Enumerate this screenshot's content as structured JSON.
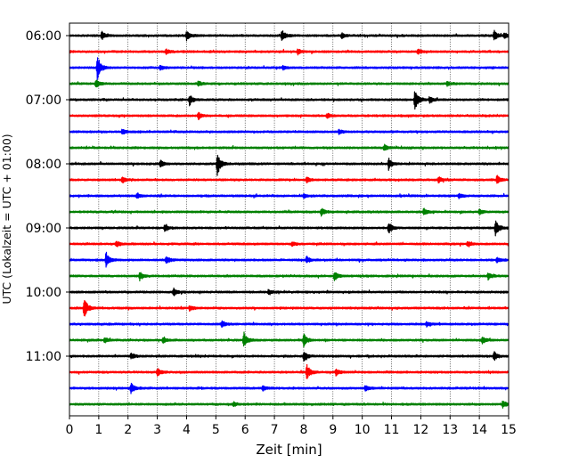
{
  "chart_data": {
    "type": "line",
    "title": "",
    "xlabel": "Zeit  [min]",
    "ylabel": "UTC (Lokalzeit = UTC + 01:00)",
    "xlim": [
      0,
      15
    ],
    "x_ticks": [
      "0",
      "1",
      "2",
      "3",
      "4",
      "5",
      "6",
      "7",
      "8",
      "9",
      "10",
      "11",
      "12",
      "13",
      "14",
      "15"
    ],
    "y_ticks": [
      "06:00",
      "07:00",
      "08:00",
      "09:00",
      "10:00",
      "11:00"
    ],
    "grid": "vertical dotted at each minute",
    "legend": "none",
    "color_cycle": [
      "#000000",
      "#ff0000",
      "#0000ff",
      "#008000"
    ],
    "traces": [
      {
        "start": "06:00",
        "color": "#000000",
        "events": [
          [
            1.1,
            1.0
          ],
          [
            4.0,
            1.1
          ],
          [
            7.25,
            1.4
          ],
          [
            9.3,
            0.7
          ],
          [
            14.5,
            1.2
          ],
          [
            14.85,
            0.8
          ]
        ]
      },
      {
        "start": "06:15",
        "color": "#ff0000",
        "events": [
          [
            3.3,
            0.6
          ],
          [
            7.8,
            0.6
          ],
          [
            11.9,
            0.6
          ]
        ]
      },
      {
        "start": "06:30",
        "color": "#0000ff",
        "events": [
          [
            0.95,
            3.2
          ],
          [
            3.1,
            0.6
          ],
          [
            7.3,
            0.5
          ]
        ]
      },
      {
        "start": "06:45",
        "color": "#008000",
        "events": [
          [
            0.9,
            1.0
          ],
          [
            4.4,
            0.6
          ],
          [
            12.9,
            0.5
          ]
        ]
      },
      {
        "start": "07:00",
        "color": "#000000",
        "events": [
          [
            4.1,
            1.3
          ],
          [
            11.8,
            2.6
          ],
          [
            12.3,
            0.7
          ]
        ]
      },
      {
        "start": "07:15",
        "color": "#ff0000",
        "events": [
          [
            4.4,
            0.9
          ],
          [
            8.8,
            0.6
          ]
        ]
      },
      {
        "start": "07:30",
        "color": "#0000ff",
        "events": [
          [
            1.8,
            0.6
          ],
          [
            9.2,
            0.5
          ]
        ]
      },
      {
        "start": "07:45",
        "color": "#008000",
        "events": [
          [
            10.75,
            0.8
          ]
        ]
      },
      {
        "start": "08:00",
        "color": "#000000",
        "events": [
          [
            3.1,
            0.9
          ],
          [
            5.05,
            2.8
          ],
          [
            10.9,
            1.4
          ]
        ]
      },
      {
        "start": "08:15",
        "color": "#ff0000",
        "events": [
          [
            1.8,
            0.7
          ],
          [
            8.1,
            0.6
          ],
          [
            12.6,
            0.7
          ],
          [
            14.6,
            1.0
          ]
        ]
      },
      {
        "start": "08:30",
        "color": "#0000ff",
        "events": [
          [
            2.3,
            0.6
          ],
          [
            8.0,
            0.5
          ],
          [
            13.3,
            0.6
          ]
        ]
      },
      {
        "start": "08:45",
        "color": "#008000",
        "events": [
          [
            8.6,
            1.0
          ],
          [
            12.1,
            0.9
          ],
          [
            14.0,
            0.6
          ]
        ]
      },
      {
        "start": "09:00",
        "color": "#000000",
        "events": [
          [
            3.25,
            0.8
          ],
          [
            10.9,
            1.3
          ],
          [
            14.55,
            2.0
          ]
        ]
      },
      {
        "start": "09:15",
        "color": "#ff0000",
        "events": [
          [
            1.6,
            0.7
          ],
          [
            7.6,
            0.5
          ],
          [
            13.6,
            0.6
          ]
        ]
      },
      {
        "start": "09:30",
        "color": "#0000ff",
        "events": [
          [
            1.25,
            2.0
          ],
          [
            3.3,
            0.9
          ],
          [
            8.1,
            0.8
          ],
          [
            14.6,
            0.6
          ]
        ]
      },
      {
        "start": "09:45",
        "color": "#008000",
        "events": [
          [
            2.4,
            1.0
          ],
          [
            9.05,
            1.2
          ],
          [
            14.3,
            0.8
          ]
        ]
      },
      {
        "start": "10:00",
        "color": "#000000",
        "events": [
          [
            3.55,
            1.0
          ],
          [
            6.8,
            0.6
          ]
        ]
      },
      {
        "start": "10:15",
        "color": "#ff0000",
        "events": [
          [
            0.5,
            2.5
          ],
          [
            4.1,
            0.6
          ]
        ]
      },
      {
        "start": "10:30",
        "color": "#0000ff",
        "events": [
          [
            5.2,
            0.8
          ],
          [
            12.2,
            0.6
          ]
        ]
      },
      {
        "start": "10:45",
        "color": "#008000",
        "events": [
          [
            1.2,
            0.6
          ],
          [
            3.2,
            0.8
          ],
          [
            5.95,
            2.2
          ],
          [
            8.0,
            1.6
          ],
          [
            14.1,
            0.8
          ]
        ]
      },
      {
        "start": "11:00",
        "color": "#000000",
        "events": [
          [
            2.1,
            0.7
          ],
          [
            8.0,
            1.2
          ],
          [
            14.5,
            1.2
          ]
        ]
      },
      {
        "start": "11:15",
        "color": "#ff0000",
        "events": [
          [
            3.0,
            1.0
          ],
          [
            8.1,
            1.9
          ],
          [
            9.1,
            0.8
          ]
        ]
      },
      {
        "start": "11:30",
        "color": "#0000ff",
        "events": [
          [
            2.1,
            1.3
          ],
          [
            6.6,
            0.6
          ],
          [
            10.1,
            0.6
          ]
        ]
      },
      {
        "start": "11:45",
        "color": "#008000",
        "events": [
          [
            5.6,
            0.5
          ],
          [
            14.8,
            0.8
          ]
        ]
      }
    ]
  }
}
